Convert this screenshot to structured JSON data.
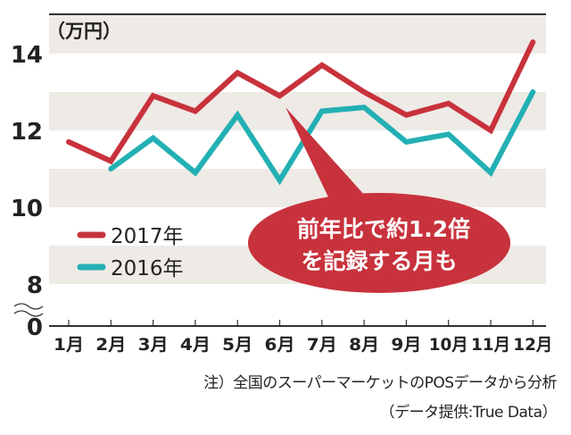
{
  "chart_data": {
    "type": "line",
    "unit_label": "（万円）",
    "categories": [
      "1月",
      "2月",
      "3月",
      "4月",
      "5月",
      "6月",
      "7月",
      "8月",
      "9月",
      "10月",
      "11月",
      "12月"
    ],
    "series": [
      {
        "name": "2017年",
        "color": "#c8323c",
        "values": [
          11.7,
          11.2,
          12.9,
          12.5,
          13.5,
          12.9,
          13.7,
          13.0,
          12.4,
          12.7,
          12.0,
          14.3
        ]
      },
      {
        "name": "2016年",
        "color": "#23b0b4",
        "values": [
          null,
          11.0,
          11.8,
          10.9,
          12.4,
          10.7,
          12.5,
          12.6,
          11.7,
          11.9,
          10.9,
          13.0
        ]
      }
    ],
    "yticks": [
      "14",
      "12",
      "10",
      "8",
      "0"
    ],
    "ylim": [
      8,
      15
    ],
    "axis_break": true,
    "grid": "alternating horizontal bands",
    "legend_position": "bottom-left",
    "annotation": {
      "line1": "前年比で約1.2倍",
      "line2": "を記録する月も",
      "color": "#c8323c"
    }
  },
  "notes": {
    "note": "注）全国のスーパーマーケットのPOSデータから分析",
    "source": "（データ提供:True Data）"
  }
}
